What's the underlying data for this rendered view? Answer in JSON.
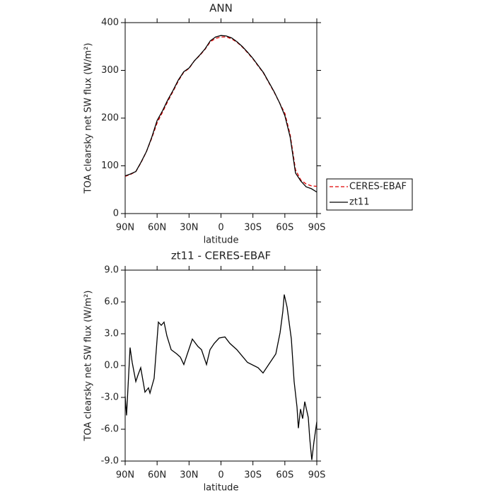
{
  "chart_data": [
    {
      "type": "line",
      "title": "ANN",
      "xlabel": "latitude",
      "ylabel": "TOA clearsky net SW flux (W/m²)",
      "x": [
        90,
        85,
        80,
        75,
        70,
        65,
        60,
        55,
        50,
        45,
        40,
        35,
        30,
        25,
        20,
        15,
        10,
        5,
        0,
        -5,
        -10,
        -15,
        -20,
        -25,
        -30,
        -35,
        -40,
        -45,
        -50,
        -55,
        -60,
        -65,
        -70,
        -75,
        -80,
        -85,
        -90
      ],
      "series": [
        {
          "name": "CERES-EBAF",
          "color": "#e00000",
          "linestyle": "dashed",
          "values": [
            78,
            82,
            88,
            107,
            130,
            158,
            190,
            212,
            235,
            256,
            278,
            296,
            304,
            320,
            331,
            344,
            360,
            367,
            370,
            370,
            366,
            359,
            349,
            337,
            324,
            309,
            294,
            274,
            254,
            232,
            210,
            165,
            92,
            70,
            62,
            58,
            57
          ]
        },
        {
          "name": "zt11",
          "color": "#000000",
          "linestyle": "solid",
          "values": [
            79,
            83,
            88,
            108,
            130,
            160,
            195,
            215,
            238,
            258,
            280,
            297,
            305,
            320,
            332,
            345,
            362,
            370,
            373,
            372,
            368,
            360,
            350,
            338,
            325,
            310,
            295,
            275,
            255,
            232,
            205,
            160,
            85,
            68,
            56,
            52,
            45
          ]
        }
      ],
      "xlim": [
        90,
        -90
      ],
      "xticks": [
        {
          "value": 90,
          "label": "90N"
        },
        {
          "value": 60,
          "label": "60N"
        },
        {
          "value": 30,
          "label": "30N"
        },
        0,
        {
          "value": -30,
          "label": "30S"
        },
        {
          "value": -60,
          "label": "60S"
        },
        {
          "value": -90,
          "label": "90S"
        }
      ],
      "ylim": [
        0,
        400
      ],
      "yticks": [
        0,
        100,
        200,
        300,
        400
      ],
      "legend_position": "right"
    },
    {
      "type": "line",
      "title": "zt11 - CERES-EBAF",
      "xlabel": "latitude",
      "ylabel": "TOA clearsky net SW flux (W/m²)",
      "x": [
        90,
        88.7,
        85.4,
        83.4,
        80,
        78,
        75.4,
        71.4,
        68.1,
        66.7,
        62.8,
        58.8,
        56.1,
        53.5,
        50.8,
        46.8,
        41.5,
        38.2,
        34.9,
        31.6,
        26.9,
        21.6,
        18.3,
        13.6,
        10.3,
        6.3,
        1.7,
        -3.7,
        -8.3,
        -14.9,
        -24.9,
        -34.9,
        -39.5,
        -44.8,
        -51.5,
        -55.5,
        -58.1,
        -59.4,
        -62.1,
        -66.1,
        -68.7,
        -71.4,
        -72.7,
        -74.7,
        -76.7,
        -78.7,
        -82,
        -83.4,
        -85.3,
        -87.3,
        -90
      ],
      "values": [
        -2.9,
        -4.7,
        1.7,
        0.3,
        -1.5,
        -0.9,
        -0.2,
        -2.5,
        -2.1,
        -2.6,
        -1.2,
        4.1,
        3.8,
        4.1,
        2.8,
        1.5,
        1.1,
        0.8,
        0.1,
        1.1,
        2.5,
        1.8,
        1.5,
        0.1,
        1.5,
        2.1,
        2.6,
        2.7,
        2.1,
        1.5,
        0.3,
        -0.2,
        -0.7,
        0.1,
        1.1,
        3.1,
        5.1,
        6.7,
        5.5,
        2.5,
        -1.5,
        -3.9,
        -5.9,
        -4.1,
        -5.0,
        -3.4,
        -4.9,
        -6.9,
        -8.9,
        -7.2,
        -5.3
      ],
      "color": "#000000",
      "xlim": [
        90,
        -90
      ],
      "xticks": [
        {
          "value": 90,
          "label": "90N"
        },
        {
          "value": 60,
          "label": "60N"
        },
        {
          "value": 30,
          "label": "30N"
        },
        0,
        {
          "value": -30,
          "label": "30S"
        },
        {
          "value": -60,
          "label": "60S"
        },
        {
          "value": -90,
          "label": "90S"
        }
      ],
      "ylim": [
        -9,
        9
      ],
      "yticks": [
        {
          "value": -9,
          "label": "-9.0"
        },
        {
          "value": -6,
          "label": "-6.0"
        },
        {
          "value": -3,
          "label": "-3.0"
        },
        {
          "value": 0,
          "label": "0.0"
        },
        {
          "value": 3,
          "label": "3.0"
        },
        {
          "value": 6,
          "label": "6.0"
        },
        {
          "value": 9,
          "label": "9.0"
        }
      ]
    }
  ]
}
